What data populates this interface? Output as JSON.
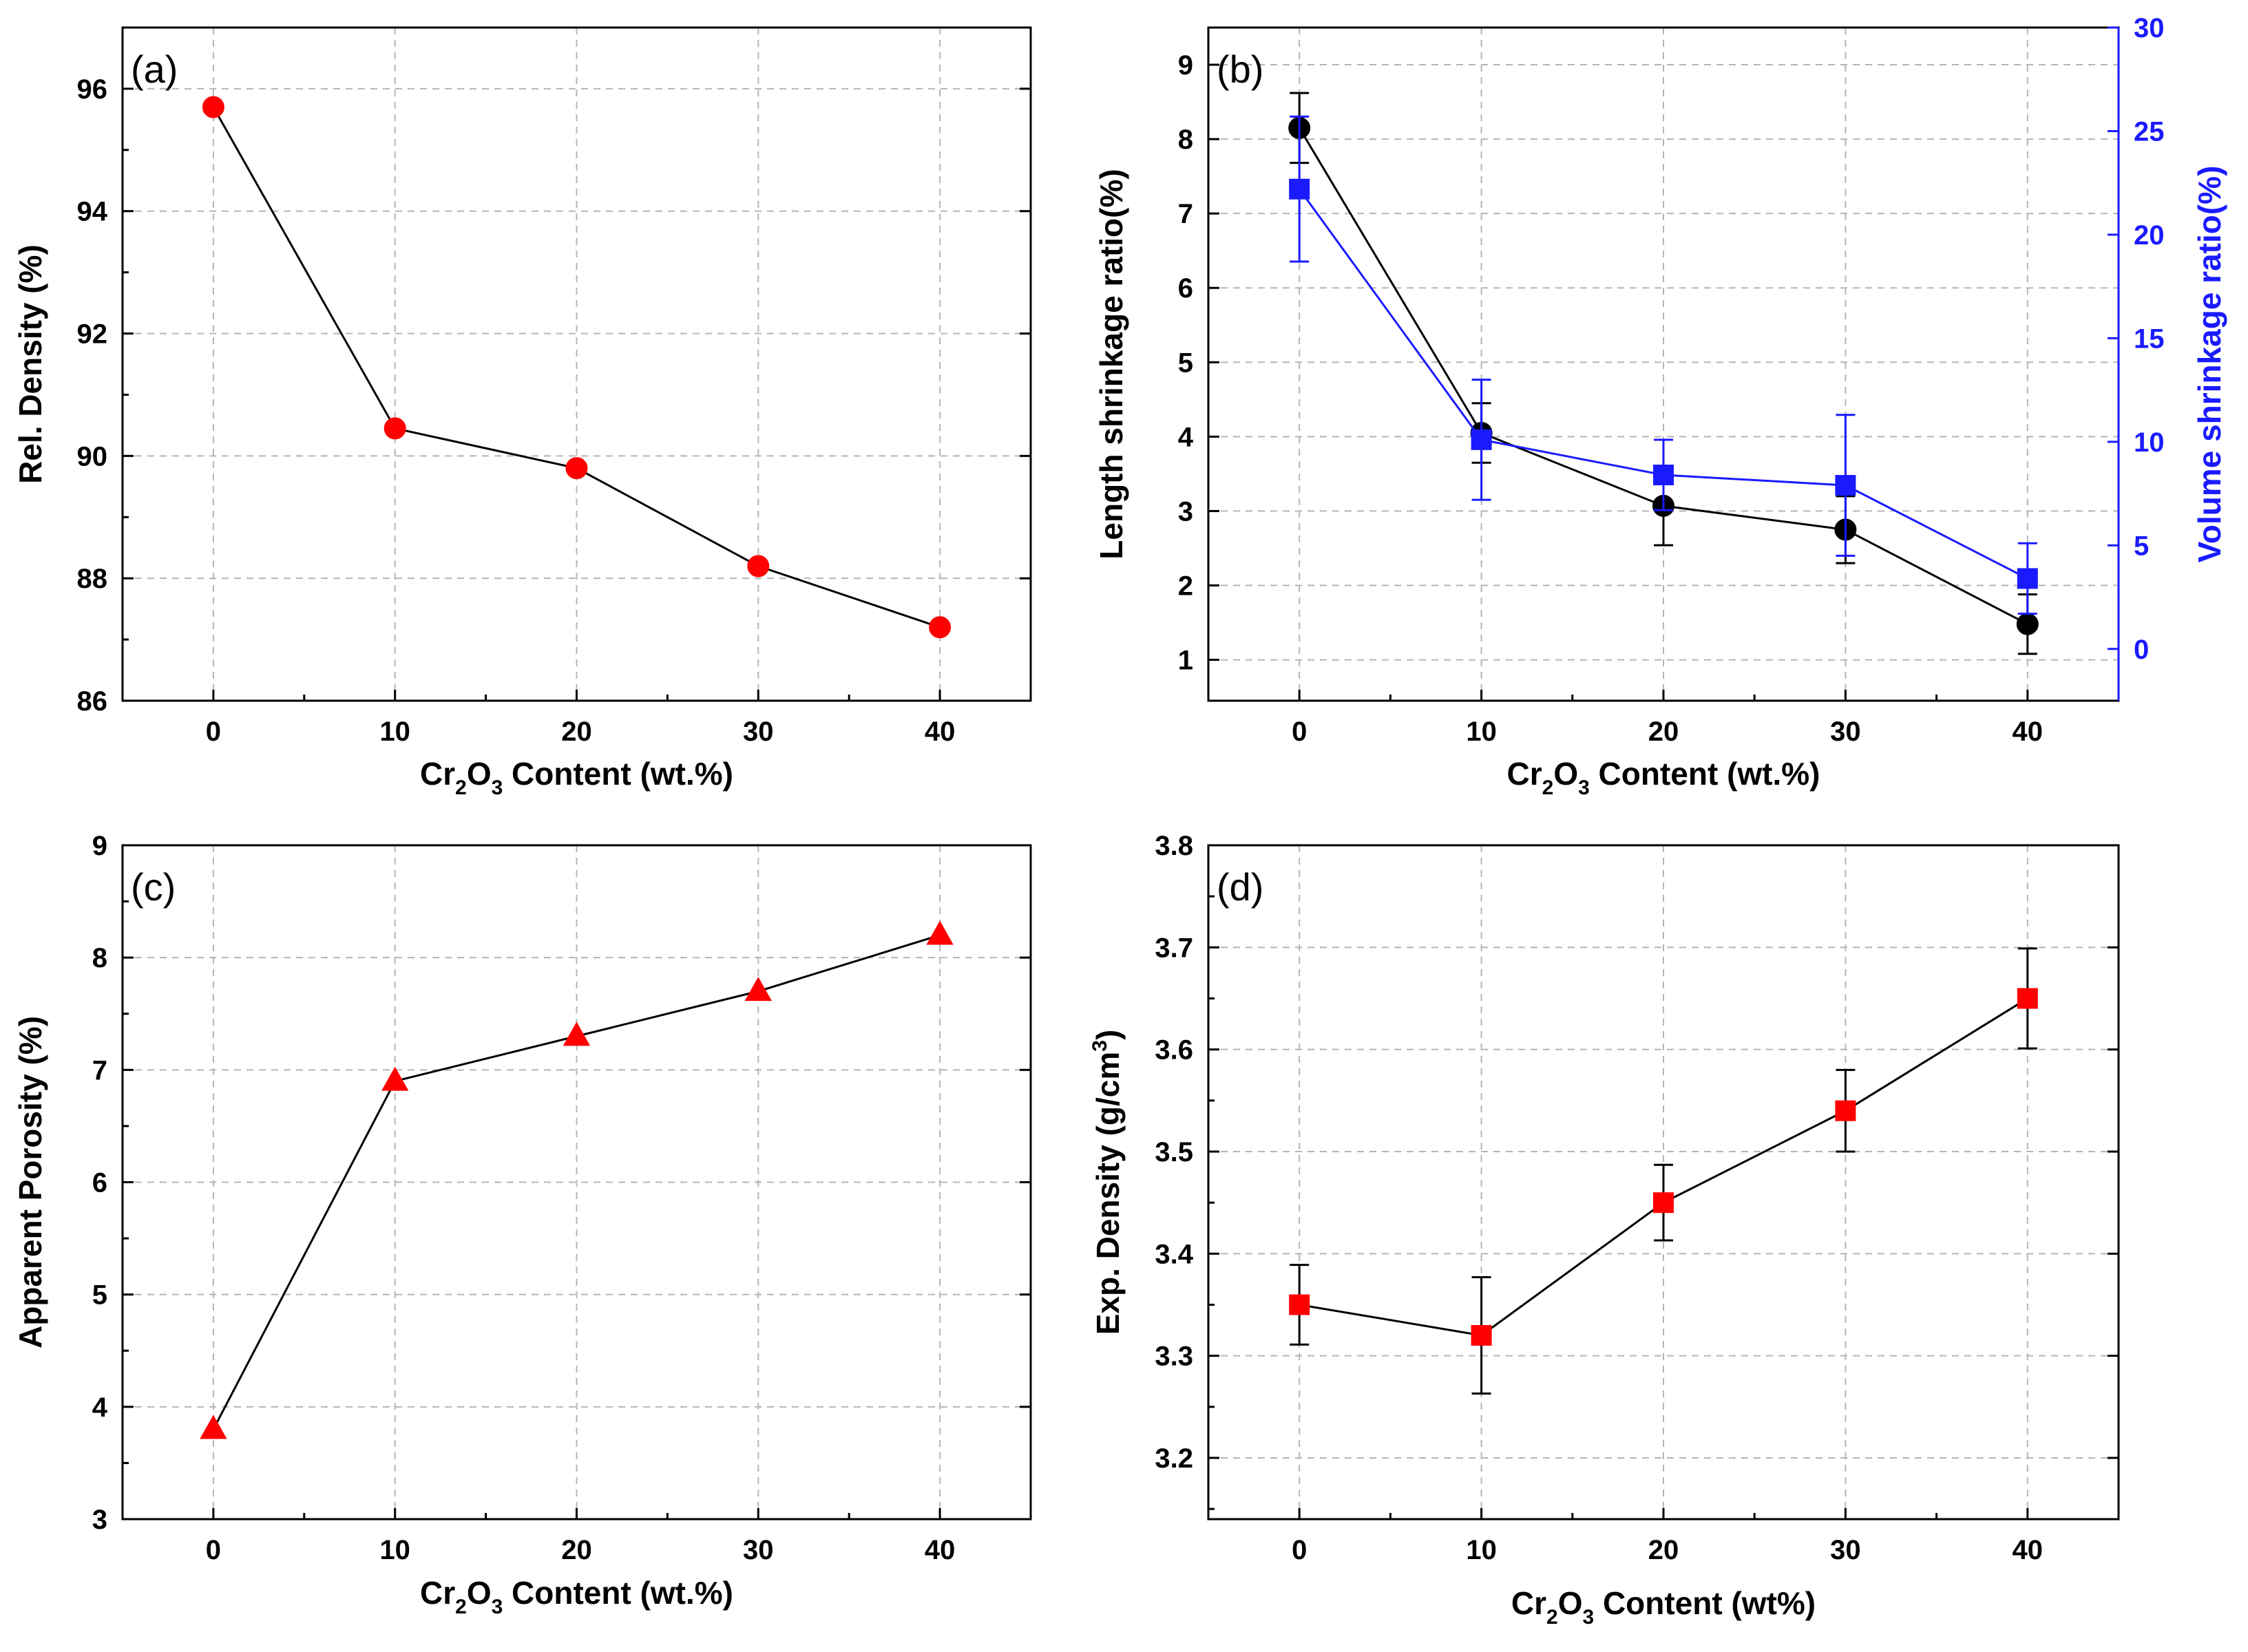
{
  "figure": {
    "panels": [
      "a",
      "b",
      "c",
      "d"
    ]
  },
  "chart_data": [
    {
      "id": "a",
      "type": "line",
      "panel_label": "(a)",
      "xlabel": {
        "base": "Cr",
        "sub1": "2",
        "mid": "O",
        "sub2": "3",
        "rest": " Content (wt.%)"
      },
      "ylabel": "Rel. Density (%)",
      "x": [
        0,
        10,
        20,
        30,
        40
      ],
      "xlim": [
        -5,
        45
      ],
      "xticks": [
        0,
        10,
        20,
        30,
        40
      ],
      "xminor": [
        5,
        15,
        25,
        35
      ],
      "ylim": [
        86,
        97
      ],
      "yticks": [
        86,
        88,
        90,
        92,
        94,
        96
      ],
      "yminor": [
        87,
        89,
        91,
        93,
        95
      ],
      "series": [
        {
          "name": "Rel. Density",
          "axis": "left",
          "values": [
            95.7,
            90.45,
            89.8,
            88.2,
            87.2
          ],
          "marker": "circle",
          "color": "#ff0000",
          "line": "#000000"
        }
      ]
    },
    {
      "id": "b",
      "type": "line",
      "panel_label": "(b)",
      "xlabel": {
        "base": "Cr",
        "sub1": "2",
        "mid": "O",
        "sub2": "3",
        "rest": " Content (wt.%)"
      },
      "ylabel": "Length shrinkage ratio(%)",
      "y2label": "Volume shrinkage ratio(%)",
      "y2color": "#1a1aff",
      "x": [
        0,
        10,
        20,
        30,
        40
      ],
      "xlim": [
        -5,
        45
      ],
      "xticks": [
        0,
        10,
        20,
        30,
        40
      ],
      "xminor": [
        5,
        15,
        25,
        35
      ],
      "ylim": [
        0.45,
        9.5
      ],
      "yticks": [
        1,
        2,
        3,
        4,
        5,
        6,
        7,
        8,
        9
      ],
      "yminor": [],
      "y2lim": [
        -2.5,
        30
      ],
      "y2ticks": [
        0,
        5,
        10,
        15,
        20,
        25,
        30
      ],
      "series": [
        {
          "name": "Length shrinkage ratio",
          "axis": "left",
          "values": [
            8.15,
            4.05,
            3.07,
            2.75,
            1.48
          ],
          "errors": [
            0.47,
            0.4,
            0.53,
            0.45,
            0.4
          ],
          "marker": "circle",
          "color": "#000000",
          "line": "#000000"
        },
        {
          "name": "Volume shrinkage ratio",
          "axis": "right",
          "values": [
            22.2,
            10.1,
            8.4,
            7.9,
            3.4
          ],
          "errors": [
            3.5,
            2.9,
            1.7,
            3.4,
            1.7
          ],
          "marker": "square",
          "color": "#1a1aff",
          "line": "#1a1aff"
        }
      ]
    },
    {
      "id": "c",
      "type": "line",
      "panel_label": "(c)",
      "xlabel": {
        "base": "Cr",
        "sub1": "2",
        "mid": "O",
        "sub2": "3",
        "rest": " Content (wt.%)"
      },
      "ylabel": "Apparent Porosity (%)",
      "x": [
        0,
        10,
        20,
        30,
        40
      ],
      "xlim": [
        -5,
        45
      ],
      "xticks": [
        0,
        10,
        20,
        30,
        40
      ],
      "xminor": [
        5,
        15,
        25,
        35
      ],
      "ylim": [
        3,
        9
      ],
      "yticks": [
        3,
        4,
        5,
        6,
        7,
        8,
        9
      ],
      "yminor": [
        3.5,
        4.5,
        5.5,
        6.5,
        7.5,
        8.5
      ],
      "series": [
        {
          "name": "Apparent Porosity",
          "axis": "left",
          "values": [
            3.8,
            6.9,
            7.3,
            7.7,
            8.2
          ],
          "marker": "triangle",
          "color": "#ff0000",
          "line": "#000000"
        }
      ]
    },
    {
      "id": "d",
      "type": "line",
      "panel_label": "(d)",
      "xlabel": {
        "base": "Cr",
        "sub1": "2",
        "mid": "O",
        "sub2": "3",
        "rest": " Content (wt%)"
      },
      "ylabel": "Exp. Density (g/cm",
      "ylabel_sup": "3",
      "ylabel_end": ")",
      "x": [
        0,
        10,
        20,
        30,
        40
      ],
      "xlim": [
        -5,
        45
      ],
      "xticks": [
        0,
        10,
        20,
        30,
        40
      ],
      "xminor": [
        5,
        15,
        25,
        35
      ],
      "ylim": [
        3.14,
        3.8
      ],
      "yticks": [
        3.2,
        3.3,
        3.4,
        3.5,
        3.6,
        3.7,
        3.8
      ],
      "yminor": [
        3.15,
        3.25,
        3.35,
        3.45,
        3.55,
        3.65,
        3.75
      ],
      "series": [
        {
          "name": "Exp. Density",
          "axis": "left",
          "values": [
            3.35,
            3.32,
            3.45,
            3.54,
            3.65
          ],
          "errors": [
            0.039,
            0.057,
            0.037,
            0.04,
            0.049
          ],
          "marker": "square",
          "color": "#ff0000",
          "line": "#000000"
        }
      ]
    }
  ]
}
